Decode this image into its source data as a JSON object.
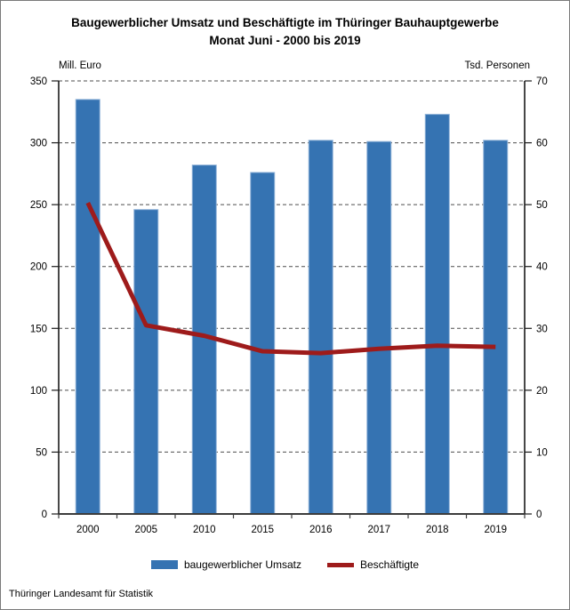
{
  "footer": {
    "source": "Thüringer Landesamt für Statistik"
  },
  "chart_data": {
    "type": "bar",
    "title": "Baugewerblicher Umsatz und Beschäftigte im Thüringer Bauhauptgewerbe",
    "subtitle": "Monat Juni - 2000 bis 2019",
    "categories": [
      "2000",
      "2005",
      "2010",
      "2015",
      "2016",
      "2017",
      "2018",
      "2019"
    ],
    "series": [
      {
        "name": "baugewerblicher Umsatz",
        "type": "bar",
        "axis": "left",
        "unit": "Mill. Euro",
        "color": "#3573b2",
        "values": [
          335,
          246,
          282,
          276,
          302,
          301,
          323,
          302
        ]
      },
      {
        "name": "Beschäftigte",
        "type": "line",
        "axis": "right",
        "unit": "Tsd. Personen",
        "color": "#9e1b1b",
        "values": [
          50.3,
          30.5,
          28.8,
          26.3,
          26.0,
          26.7,
          27.2,
          27.0
        ]
      }
    ],
    "left_axis": {
      "label": "Mill. Euro",
      "min": 0,
      "max": 350,
      "step": 50
    },
    "right_axis": {
      "label": "Tsd. Personen",
      "min": 0,
      "max": 70,
      "step": 10
    },
    "grid": "horizontal dashed",
    "legend_position": "bottom"
  }
}
